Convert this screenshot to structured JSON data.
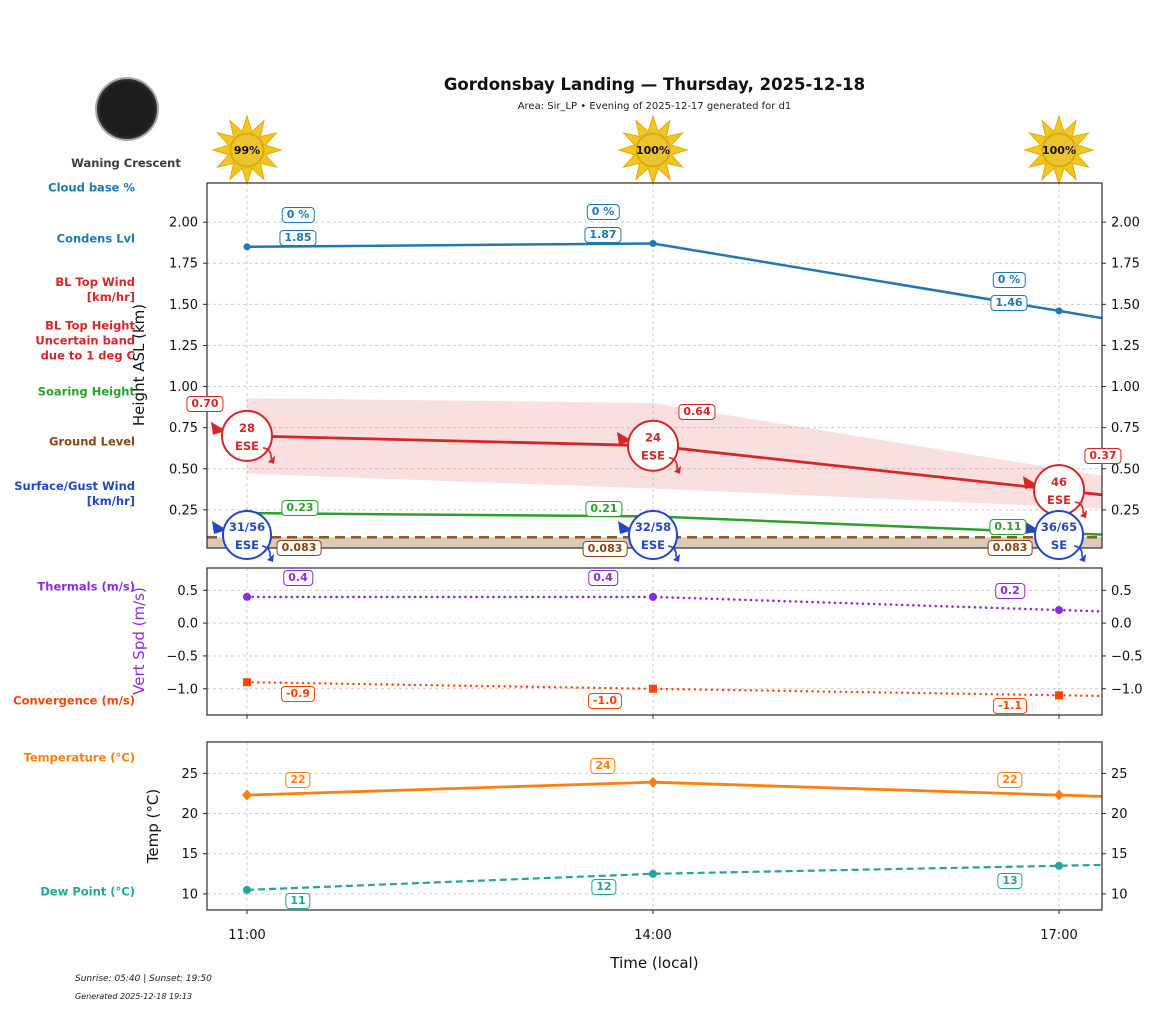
{
  "header": {
    "title": "Gordonsbay Landing — Thursday, 2025-12-18",
    "subtitle": "Area: Sir_LP • Evening of 2025-12-17 generated for d1"
  },
  "moon": {
    "phase_label": "Waning Crescent"
  },
  "sunshine_pct": [
    "99%",
    "100%",
    "100%"
  ],
  "left_labels": [
    {
      "text": "Cloud base %",
      "color": "#1f77b4"
    },
    {
      "text": "Condens Lvl",
      "color": "#1f77b4"
    },
    {
      "text": "BL Top Wind\n[km/hr]",
      "color": "#d62728"
    },
    {
      "text": "BL Top Height\nUncertain band\ndue to 1 deg C",
      "color": "#d62728"
    },
    {
      "text": "Soaring Height",
      "color": "#2ca02c"
    },
    {
      "text": "Ground Level",
      "color": "#8b4513"
    },
    {
      "text": "Surface/Gust Wind\n[km/hr]",
      "color": "#2545c8"
    },
    {
      "text": "Thermals (m/s)",
      "color": "#8a2be2"
    },
    {
      "text": "Convergence (m/s)",
      "color": "#ff4500"
    },
    {
      "text": "Temperature (°C)",
      "color": "#ff7f0e"
    },
    {
      "text": "Dew Point (°C)",
      "color": "#21a69a"
    }
  ],
  "footer": {
    "sunrise_sunset": "Sunrise: 05:40 | Sunset: 19:50",
    "generated": "Generated 2025-12-18 19:13"
  },
  "chart_data": [
    {
      "type": "line",
      "ylabel": "Height ASL (km)",
      "ylabel_color": "#111111",
      "x": [
        "11:00",
        "14:00",
        "17:00"
      ],
      "yticks": [
        2.0,
        1.75,
        1.5,
        1.25,
        1.0,
        0.75,
        0.5,
        0.25
      ],
      "ytick_labels": [
        "2.00",
        "1.75",
        "1.50",
        "1.25",
        "1.00",
        "0.75",
        "0.50",
        "0.25"
      ],
      "ylim": [
        0.018,
        2.238
      ],
      "grid": true,
      "series": [
        {
          "name": "Condens Lvl",
          "color": "#1f77b4",
          "values": [
            1.85,
            1.87,
            1.46
          ],
          "point_labels": [
            "1.85",
            "1.87",
            "1.46"
          ],
          "cloud_base_pct": [
            "0 %",
            "0 %",
            "0 %"
          ]
        },
        {
          "name": "BL Top Height",
          "color": "#d62728",
          "values": [
            0.7,
            0.64,
            0.37
          ],
          "point_labels": [
            "0.70",
            "0.64",
            "0.37"
          ],
          "uncertainty_upper": [
            0.93,
            0.9,
            0.5
          ],
          "uncertainty_lower": [
            0.47,
            0.38,
            0.27
          ],
          "wind": [
            {
              "speed": "28",
              "dir": "ESE"
            },
            {
              "speed": "24",
              "dir": "ESE"
            },
            {
              "speed": "46",
              "dir": "ESE"
            }
          ]
        },
        {
          "name": "Soaring Height",
          "color": "#2ca02c",
          "values": [
            0.23,
            0.21,
            0.11
          ],
          "point_labels": [
            "0.23",
            "0.21",
            "0.11"
          ]
        },
        {
          "name": "Ground Level",
          "color": "#8b5a2b",
          "label_color": "#8b4513",
          "values": [
            0.083,
            0.083,
            0.083
          ],
          "point_labels": [
            "0.083",
            "0.083",
            "0.083"
          ]
        }
      ],
      "surface_wind": {
        "color": "#2545c8",
        "points": [
          {
            "speed": "31/56",
            "dir": "ESE"
          },
          {
            "speed": "32/58",
            "dir": "ESE"
          },
          {
            "speed": "36/65",
            "dir": "SE"
          }
        ]
      }
    },
    {
      "type": "line",
      "ylabel": "Vert Spd (m/s)",
      "ylabel_color": "#8a2be2",
      "x": [
        "11:00",
        "14:00",
        "17:00"
      ],
      "yticks": [
        0.5,
        0.0,
        -0.5,
        -1.0
      ],
      "ytick_labels": [
        "0.5",
        "0.0",
        "−0.5",
        "−1.0"
      ],
      "ylim": [
        -1.4,
        0.84
      ],
      "grid": true,
      "series": [
        {
          "name": "Thermals",
          "color": "#8a2be2",
          "values": [
            0.4,
            0.4,
            0.2
          ],
          "point_labels": [
            "0.4",
            "0.4",
            "0.2"
          ]
        },
        {
          "name": "Convergence",
          "color": "#ff4500",
          "values": [
            -0.9,
            -1.0,
            -1.1
          ],
          "point_labels": [
            "-0.9",
            "-1.0",
            "-1.1"
          ]
        }
      ]
    },
    {
      "type": "line",
      "ylabel": "Temp (°C)",
      "ylabel_color": "#111111",
      "xlabel": "Time (local)",
      "x": [
        "11:00",
        "14:00",
        "17:00"
      ],
      "yticks": [
        25,
        20,
        15,
        10
      ],
      "ytick_labels": [
        "25",
        "20",
        "15",
        "10"
      ],
      "ylim": [
        8.0,
        28.9
      ],
      "grid": true,
      "series": [
        {
          "name": "Temperature",
          "color": "#ff7f0e",
          "values": [
            22.3,
            23.9,
            22.3
          ],
          "point_labels": [
            "22",
            "24",
            "22"
          ]
        },
        {
          "name": "Dew Point",
          "color": "#21a69a",
          "values": [
            10.5,
            12.5,
            13.5
          ],
          "point_labels": [
            "11",
            "12",
            "13"
          ]
        }
      ]
    }
  ]
}
